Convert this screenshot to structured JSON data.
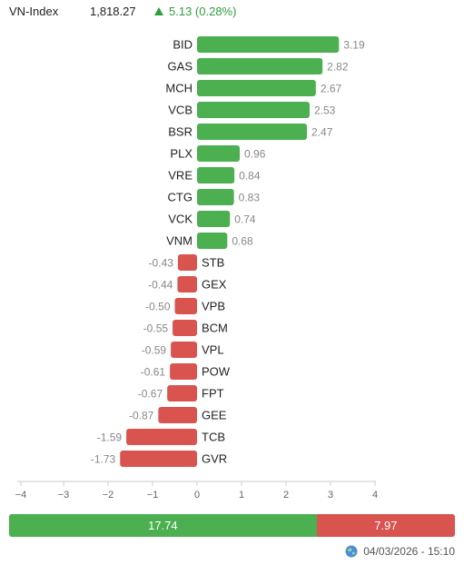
{
  "index": {
    "name": "VN-Index",
    "value": "1,818.27",
    "change": "5.13 (0.28%)",
    "accent_up": "#2e9e3e"
  },
  "chart_data": {
    "type": "bar",
    "orientation": "horizontal",
    "categories": [
      "BID",
      "GAS",
      "MCH",
      "VCB",
      "BSR",
      "PLX",
      "VRE",
      "CTG",
      "VCK",
      "VNM",
      "STB",
      "GEX",
      "VPB",
      "BCM",
      "VPL",
      "POW",
      "FPT",
      "GEE",
      "TCB",
      "GVR"
    ],
    "values": [
      3.19,
      2.82,
      2.67,
      2.53,
      2.47,
      0.96,
      0.84,
      0.83,
      0.74,
      0.68,
      -0.43,
      -0.44,
      -0.5,
      -0.55,
      -0.59,
      -0.61,
      -0.67,
      -0.87,
      -1.59,
      -1.73
    ],
    "value_labels": [
      "3.19",
      "2.82",
      "2.67",
      "2.53",
      "2.47",
      "0.96",
      "0.84",
      "0.83",
      "0.74",
      "0.68",
      "-0.43",
      "-0.44",
      "-0.50",
      "-0.55",
      "-0.59",
      "-0.61",
      "-0.67",
      "-0.87",
      "-1.59",
      "-1.73"
    ],
    "xlim": [
      -4,
      4
    ],
    "ticks": [
      -4,
      -3,
      -2,
      -1,
      0,
      1,
      2,
      3,
      4
    ],
    "tick_labels": [
      "−4",
      "−3",
      "−2",
      "−1",
      "0",
      "1",
      "2",
      "3",
      "4"
    ],
    "colors": {
      "positive": "#4caf50",
      "negative": "#d9534f"
    },
    "grid": false
  },
  "breadth": {
    "positive": 17.74,
    "negative": 7.97,
    "positive_label": "17.74",
    "negative_label": "7.97"
  },
  "footer": {
    "timestamp": "04/03/2026 - 15:10",
    "icon": "globe-icon"
  }
}
